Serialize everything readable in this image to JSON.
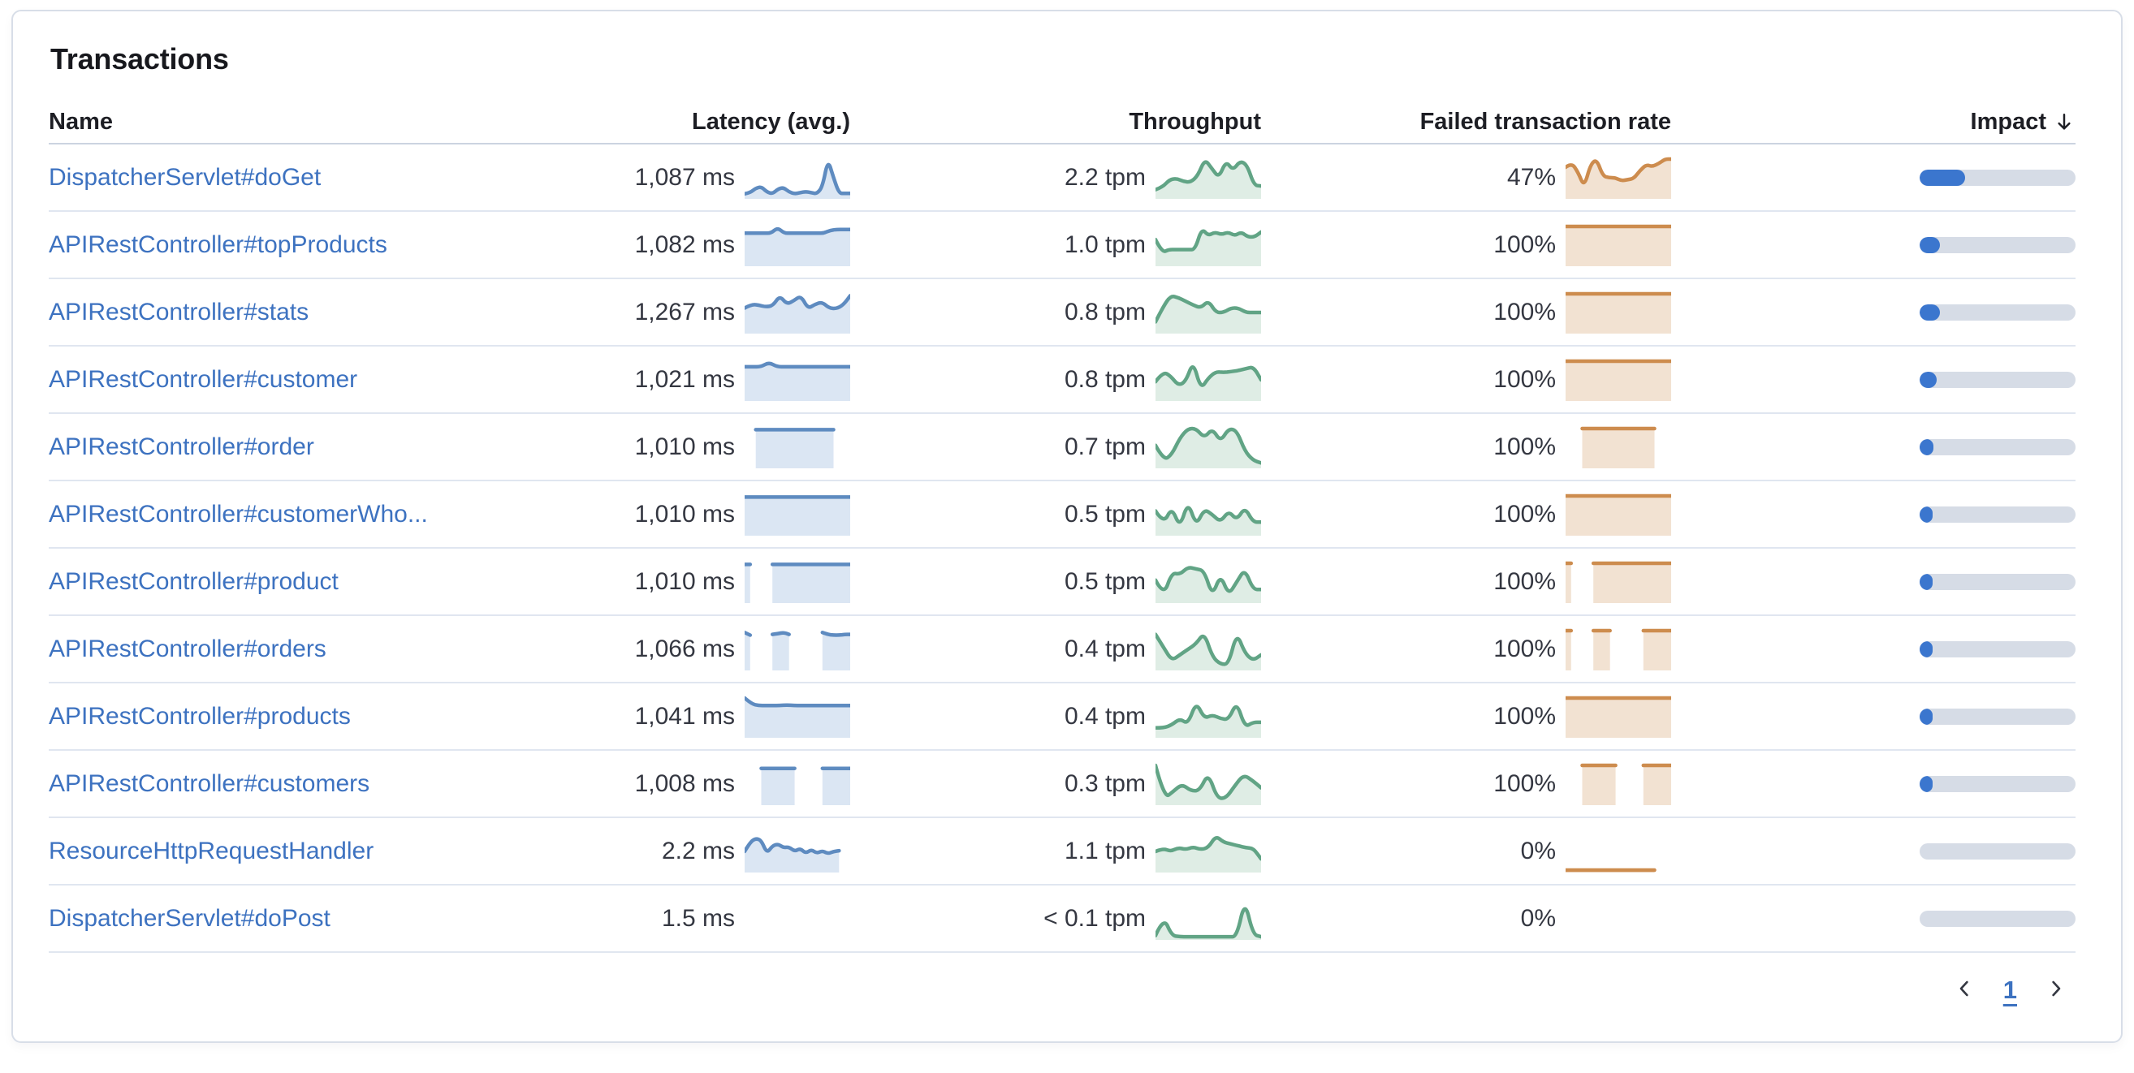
{
  "card": {
    "title": "Transactions"
  },
  "colors": {
    "link": "#3D72C0",
    "latency_line": "#5E8BC0",
    "latency_fill": "#DBE6F3",
    "throughput_line": "#61A485",
    "throughput_fill": "#DFEDE5",
    "failed_line": "#CD8C4E",
    "failed_fill": "#F2E2D2",
    "impact_fill": "#3B76CE",
    "impact_track": "#D6DCE6"
  },
  "table": {
    "columns": [
      {
        "key": "name",
        "label": "Name"
      },
      {
        "key": "latency",
        "label": "Latency (avg.)"
      },
      {
        "key": "throughput",
        "label": "Throughput"
      },
      {
        "key": "failed",
        "label": "Failed transaction rate"
      },
      {
        "key": "impact",
        "label": "Impact",
        "sorted": "desc"
      }
    ],
    "rows": [
      {
        "name": "DispatcherServlet#doGet",
        "latency": "1,087 ms",
        "throughput": "2.2 tpm",
        "failed_rate": "47%",
        "impact_pct": 29,
        "latency_spark": [
          0.07,
          0.1,
          0.22,
          0.26,
          0.12,
          0.07,
          0.2,
          0.24,
          0.12,
          0.07,
          0.1,
          0.13,
          0.1,
          0.07,
          0.25,
          1.0,
          0.5,
          0.08,
          0.08,
          0.08
        ],
        "throughput_spark": [
          0.18,
          0.25,
          0.45,
          0.48,
          0.4,
          0.38,
          0.55,
          1.0,
          0.75,
          0.5,
          0.95,
          0.7,
          0.95,
          0.85,
          0.3,
          0.28
        ],
        "failed_spark": [
          0.78,
          0.9,
          0.65,
          0.25,
          0.85,
          1.0,
          0.55,
          0.5,
          0.5,
          0.42,
          0.45,
          0.48,
          0.7,
          0.85,
          0.8,
          0.88,
          1.0,
          1.0
        ]
      },
      {
        "name": "APIRestController#topProducts",
        "latency": "1,082 ms",
        "throughput": "1.0 tpm",
        "failed_rate": "100%",
        "impact_pct": 13,
        "latency_spark": [
          0.82,
          0.82,
          0.82,
          0.82,
          0.82,
          0.97,
          0.82,
          0.82,
          0.82,
          0.82,
          0.82,
          0.82,
          0.82,
          0.9,
          0.92,
          0.92,
          0.92
        ],
        "throughput_spark": [
          0.65,
          0.3,
          0.38,
          0.38,
          0.38,
          0.38,
          0.38,
          0.95,
          0.75,
          0.85,
          0.78,
          0.85,
          0.75,
          0.85,
          0.72,
          0.72,
          0.85
        ],
        "failed_spark": [
          1,
          1,
          1,
          1,
          1,
          1,
          1,
          1,
          1,
          1,
          1,
          1
        ]
      },
      {
        "name": "APIRestController#stats",
        "latency": "1,267 ms",
        "throughput": "0.8 tpm",
        "failed_rate": "100%",
        "impact_pct": 13,
        "latency_spark": [
          0.62,
          0.72,
          0.7,
          0.65,
          0.68,
          0.95,
          0.72,
          0.82,
          0.95,
          0.6,
          0.72,
          0.78,
          0.62,
          0.6,
          0.7,
          0.95
        ],
        "throughput_spark": [
          0.25,
          0.65,
          0.95,
          0.9,
          0.8,
          0.7,
          0.62,
          0.82,
          0.5,
          0.5,
          0.62,
          0.62,
          0.5,
          0.5,
          0.5
        ],
        "failed_spark": [
          1,
          1,
          1,
          1,
          1,
          1,
          1,
          1,
          1,
          1,
          1,
          1
        ]
      },
      {
        "name": "APIRestController#customer",
        "latency": "1,021 ms",
        "throughput": "0.8 tpm",
        "failed_rate": "100%",
        "impact_pct": 11,
        "latency_spark": [
          0.85,
          0.85,
          0.85,
          0.97,
          0.85,
          0.85,
          0.85,
          0.85,
          0.85,
          0.85,
          0.85,
          0.85,
          0.85,
          0.85
        ],
        "throughput_spark": [
          0.45,
          0.72,
          0.6,
          0.35,
          0.45,
          1.0,
          0.25,
          0.55,
          0.72,
          0.7,
          0.72,
          0.75,
          0.8,
          0.85,
          0.5
        ],
        "failed_spark": [
          1,
          1,
          1,
          1,
          1,
          1,
          1,
          1,
          1,
          1,
          1,
          1
        ]
      },
      {
        "name": "APIRestController#order",
        "latency": "1,010 ms",
        "throughput": "0.7 tpm",
        "failed_rate": "100%",
        "impact_pct": 9,
        "latency_spark": [
          null,
          null,
          0.97,
          0.97,
          0.97,
          0.97,
          0.97,
          0.97,
          0.97,
          0.97,
          0.97,
          0.97,
          0.97,
          0.97,
          0.97,
          0.97,
          0.97,
          null,
          null,
          null
        ],
        "throughput_spark": [
          0.55,
          0.15,
          0.3,
          0.75,
          1.0,
          1.0,
          0.75,
          1.0,
          0.65,
          1.0,
          0.95,
          0.4,
          0.15,
          0.08
        ],
        "failed_spark": [
          null,
          null,
          null,
          1,
          1,
          1,
          1,
          1,
          1,
          1,
          1,
          1,
          1,
          1,
          1,
          1,
          1,
          null,
          null,
          null
        ]
      },
      {
        "name": "APIRestController#customerWho...",
        "latency": "1,010 ms",
        "throughput": "0.5 tpm",
        "failed_rate": "100%",
        "impact_pct": 7,
        "latency_spark": [
          0.97,
          0.97,
          0.97,
          0.97,
          0.97,
          0.97,
          0.97,
          0.97,
          0.97,
          0.97,
          0.97,
          0.97,
          0.97,
          0.97
        ],
        "throughput_spark": [
          0.6,
          0.25,
          0.7,
          0.15,
          0.85,
          0.2,
          0.65,
          0.5,
          0.3,
          0.6,
          0.35,
          0.7,
          0.3,
          0.3
        ],
        "failed_spark": [
          1,
          1,
          1,
          1,
          1,
          1,
          1,
          1,
          1,
          1,
          1,
          1
        ]
      },
      {
        "name": "APIRestController#product",
        "latency": "1,010 ms",
        "throughput": "0.5 tpm",
        "failed_rate": "100%",
        "impact_pct": 6.5,
        "latency_spark": [
          0.97,
          0.97,
          null,
          null,
          null,
          0.97,
          0.97,
          0.97,
          0.97,
          0.97,
          0.97,
          0.97,
          0.97,
          0.97,
          0.97,
          0.97,
          0.97,
          0.97,
          0.97,
          0.97
        ],
        "throughput_spark": [
          0.55,
          0.12,
          0.75,
          0.7,
          0.9,
          0.85,
          0.8,
          0.12,
          0.7,
          0.15,
          0.5,
          0.85,
          0.3,
          0.3
        ],
        "failed_spark": [
          1,
          1,
          null,
          null,
          null,
          1,
          1,
          1,
          1,
          1,
          1,
          1,
          1,
          1,
          1,
          1,
          1,
          1,
          1,
          1
        ]
      },
      {
        "name": "APIRestController#orders",
        "latency": "1,066 ms",
        "throughput": "0.4 tpm",
        "failed_rate": "100%",
        "impact_pct": 6,
        "latency_spark": [
          0.95,
          0.88,
          null,
          null,
          null,
          0.9,
          0.92,
          0.95,
          0.9,
          null,
          null,
          null,
          null,
          null,
          0.95,
          0.9,
          0.88,
          0.88,
          0.9,
          0.9
        ],
        "throughput_spark": [
          0.9,
          0.55,
          0.2,
          0.35,
          0.5,
          0.65,
          0.95,
          0.3,
          0.1,
          0.1,
          0.95,
          0.4,
          0.2,
          0.35
        ],
        "failed_spark": [
          1,
          1,
          null,
          null,
          null,
          1,
          1,
          1,
          1,
          null,
          null,
          null,
          null,
          null,
          1,
          1,
          1,
          1,
          1,
          1
        ]
      },
      {
        "name": "APIRestController#products",
        "latency": "1,041 ms",
        "throughput": "0.4 tpm",
        "failed_rate": "100%",
        "impact_pct": 6,
        "latency_spark": [
          1.0,
          0.84,
          0.8,
          0.8,
          0.8,
          0.8,
          0.81,
          0.8,
          0.8,
          0.8,
          0.8,
          0.8,
          0.8,
          0.8,
          0.8,
          0.8
        ],
        "throughput_spark": [
          0.2,
          0.2,
          0.28,
          0.45,
          0.3,
          0.9,
          0.45,
          0.55,
          0.45,
          0.42,
          0.9,
          0.22,
          0.35,
          0.35
        ],
        "failed_spark": [
          1,
          1,
          1,
          1,
          1,
          1,
          1,
          1,
          1,
          1,
          1,
          1
        ]
      },
      {
        "name": "APIRestController#customers",
        "latency": "1,008 ms",
        "throughput": "0.3 tpm",
        "failed_rate": "100%",
        "impact_pct": 5,
        "latency_spark": [
          null,
          null,
          null,
          0.92,
          0.92,
          0.92,
          0.92,
          0.92,
          0.92,
          0.92,
          null,
          null,
          null,
          null,
          0.92,
          0.92,
          0.92,
          0.92,
          0.92,
          0.92
        ],
        "throughput_spark": [
          1.0,
          0.12,
          0.3,
          0.5,
          0.32,
          0.32,
          0.8,
          0.12,
          0.12,
          0.45,
          0.75,
          0.6,
          0.4
        ],
        "failed_spark": [
          null,
          null,
          null,
          1,
          1,
          1,
          1,
          1,
          1,
          1,
          null,
          null,
          null,
          null,
          1,
          1,
          1,
          1,
          1,
          1
        ]
      },
      {
        "name": "ResourceHttpRequestHandler",
        "latency": "2.2 ms",
        "throughput": "1.1 tpm",
        "failed_rate": "0%",
        "impact_pct": 0,
        "latency_spark": [
          0.5,
          0.75,
          0.85,
          0.8,
          0.45,
          0.65,
          0.7,
          0.6,
          0.62,
          0.5,
          0.58,
          0.45,
          0.55,
          0.45,
          0.52,
          0.44,
          0.5,
          0.52,
          null,
          null
        ],
        "throughput_spark": [
          0.5,
          0.58,
          0.5,
          0.6,
          0.55,
          0.62,
          0.55,
          0.6,
          0.92,
          0.75,
          0.7,
          0.65,
          0.6,
          0.58,
          0.3
        ],
        "failed_spark": [
          0,
          0,
          0,
          0,
          0,
          0,
          0,
          0,
          0,
          0,
          0,
          0,
          0,
          0,
          0,
          0,
          0,
          null,
          null,
          null
        ]
      },
      {
        "name": "DispatcherServlet#doPost",
        "latency": "1.5 ms",
        "throughput": "< 0.1 tpm",
        "failed_rate": "0%",
        "impact_pct": 0,
        "latency_spark": [],
        "throughput_spark": [
          0.05,
          0.55,
          0.05,
          0.02,
          0.02,
          0.02,
          0.02,
          0.02,
          0.02,
          0.02,
          0.02,
          1.0,
          0.08,
          0.02
        ],
        "failed_spark": []
      }
    ]
  },
  "pagination": {
    "current_page": "1"
  }
}
